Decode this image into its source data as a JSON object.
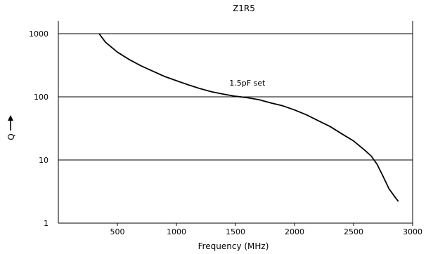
{
  "chart_data": {
    "type": "line",
    "title": "Z1R5",
    "xlabel": "Frequency (MHz)",
    "ylabel": "Q",
    "y_scale": "log",
    "xlim": [
      0,
      3000
    ],
    "ylim": [
      1,
      1000
    ],
    "x_ticks": [
      500,
      1000,
      1500,
      2000,
      2500,
      3000
    ],
    "x_tick_labels": [
      "500",
      "1000",
      "1500",
      "2000",
      "2500",
      "3000"
    ],
    "y_ticks": [
      1,
      10,
      100,
      1000
    ],
    "y_tick_labels": [
      "1",
      "10",
      "100",
      "1000"
    ],
    "grid": "horizontal",
    "series": [
      {
        "name": "1.5pF set",
        "x": [
          345,
          400,
          500,
          600,
          700,
          800,
          900,
          1000,
          1100,
          1200,
          1300,
          1400,
          1500,
          1600,
          1700,
          1800,
          1900,
          2000,
          2100,
          2200,
          2300,
          2400,
          2500,
          2600,
          2650,
          2700,
          2750,
          2800,
          2850,
          2880
        ],
        "y": [
          1000,
          730,
          510,
          390,
          310,
          255,
          210,
          180,
          155,
          135,
          120,
          110,
          102,
          97,
          90,
          80,
          72,
          62,
          52,
          42,
          34,
          26,
          20,
          14,
          11.5,
          8.5,
          5.5,
          3.5,
          2.6,
          2.2
        ]
      }
    ],
    "annotations": [
      {
        "text": "1.5pF set",
        "x": 1600,
        "y": 150
      }
    ],
    "colors": {
      "line": "#000000",
      "grid": "#000000"
    }
  }
}
